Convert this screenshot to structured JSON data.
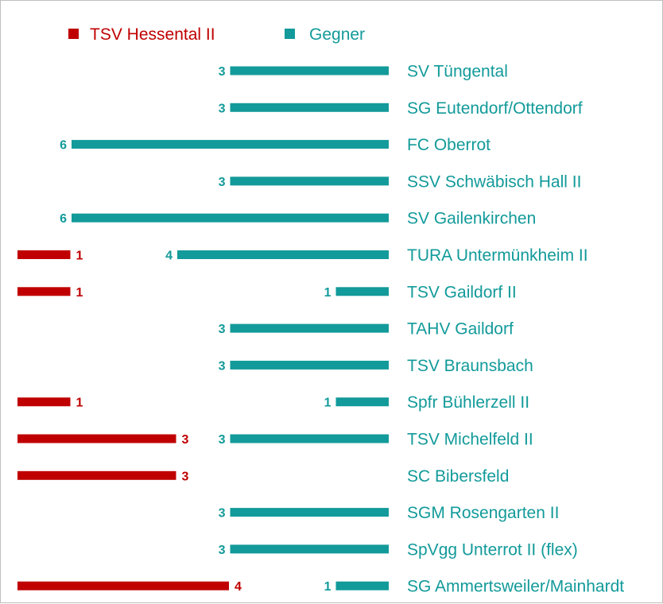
{
  "chart_data": {
    "type": "bar",
    "orientation": "horizontal",
    "legend": {
      "placement": "top-left",
      "entries": [
        {
          "key": "home",
          "label": "TSV Hessental II",
          "color": "#c00000"
        },
        {
          "key": "opp",
          "label": "Gegner",
          "color": "#139a9a"
        }
      ]
    },
    "categories": [
      "SV Tüngental",
      "SG Eutendorf/Ottendorf",
      "FC Oberrot",
      "SSV Schwäbisch Hall II",
      "SV Gailenkirchen",
      "TURA Untermünkheim II",
      "TSV Gaildorf II",
      "TAHV Gaildorf",
      "TSV Braunsbach",
      "Spfr Bühlerzell II",
      "TSV Michelfeld II",
      "SC Bibersfeld",
      "SGM Rosengarten II",
      "SpVgg Unterrot II (flex)",
      "SG Ammertsweiler/Mainhardt"
    ],
    "series": [
      {
        "name": "TSV Hessental II",
        "key": "home",
        "color": "#c00000",
        "values": [
          0,
          0,
          0,
          0,
          0,
          1,
          1,
          0,
          0,
          1,
          3,
          3,
          0,
          0,
          4
        ]
      },
      {
        "name": "Gegner",
        "key": "opp",
        "color": "#139a9a",
        "values": [
          3,
          3,
          6,
          3,
          6,
          4,
          1,
          3,
          3,
          1,
          3,
          0,
          3,
          3,
          1
        ]
      }
    ],
    "xlim": [
      0,
      6
    ],
    "grid": false,
    "axes_visible": false
  }
}
